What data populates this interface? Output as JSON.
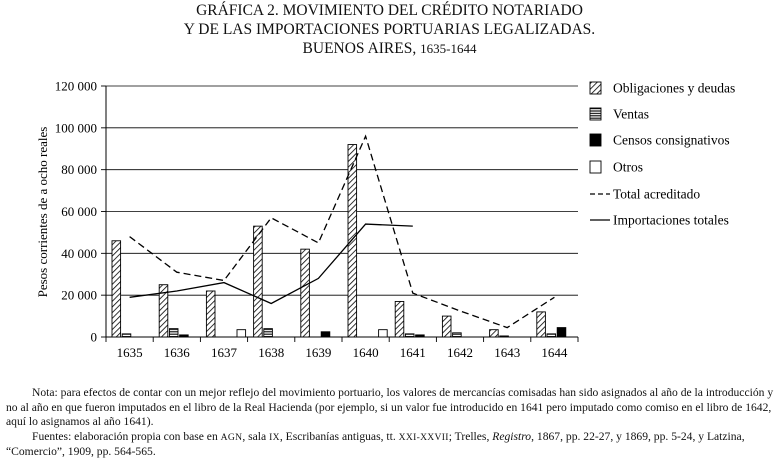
{
  "title": {
    "line1": "GRÁFICA 2. MOVIMIENTO DEL CRÉDITO NOTARIADO",
    "line2": "Y DE LAS IMPORTACIONES PORTUARIAS LEGALIZADAS.",
    "line3_main": "BUENOS AIRES,",
    "line3_years": "1635-1644"
  },
  "chart_data": {
    "type": "bar",
    "ylabel": "Pesos corrientes de a ocho reales",
    "xlabel": "",
    "ylim": [
      0,
      120000
    ],
    "yticks": [
      0,
      20000,
      40000,
      60000,
      80000,
      100000,
      120000
    ],
    "ytick_labels": [
      "0",
      "20 000",
      "40 000",
      "60 000",
      "80 000",
      "100 000",
      "120 000"
    ],
    "grid": "horizontal",
    "legend_position": "right",
    "categories": [
      "1635",
      "1636",
      "1637",
      "1638",
      "1639",
      "1640",
      "1641",
      "1642",
      "1643",
      "1644"
    ],
    "series": [
      {
        "name": "Obligaciones y deudas",
        "kind": "bar",
        "pattern": "diagonal-hatch",
        "values": [
          46000,
          25000,
          22000,
          53000,
          42000,
          92000,
          17000,
          10000,
          3500,
          12000
        ]
      },
      {
        "name": "Ventas",
        "kind": "bar",
        "pattern": "horizontal-lines",
        "values": [
          1500,
          4000,
          0,
          4000,
          0,
          0,
          1500,
          2000,
          500,
          1500
        ]
      },
      {
        "name": "Censos consignativos",
        "kind": "bar",
        "pattern": "solid-black",
        "values": [
          0,
          1000,
          0,
          0,
          2500,
          0,
          1000,
          0,
          0,
          4500
        ]
      },
      {
        "name": "Otros",
        "kind": "bar",
        "pattern": "white",
        "values": [
          0,
          0,
          3500,
          0,
          0,
          3500,
          0,
          0,
          0,
          0
        ]
      },
      {
        "name": "Total acreditado",
        "kind": "line",
        "style": "dashed",
        "values": [
          48000,
          31000,
          27000,
          57000,
          45000,
          96000,
          21000,
          12500,
          4500,
          19000
        ]
      },
      {
        "name": "Importaciones totales",
        "kind": "line",
        "style": "solid",
        "values": [
          19000,
          22000,
          26000,
          16000,
          28000,
          54000,
          53000,
          null,
          null,
          null
        ]
      }
    ]
  },
  "notes": {
    "note": "Nota: para efectos de contar con un mejor reflejo del movimiento portuario, los valores de mercancías comisadas han sido asignados al año de la introducción y no al año en que fueron imputados en el libro de la Real Hacienda (por ejemplo, si un valor fue introducido en 1641 pero imputado como comiso en el libro de 1642, aquí lo asignamos al año 1641).",
    "sources_prefix": "Fuentes: elaboración propia con base en ",
    "agn": "AGN",
    "sala_text": ", sala ",
    "sala_num": "IX",
    "escribanias": ", Escribanías antiguas, tt. ",
    "tomos": "XXI-XXVII",
    "trelles": "; Trelles, ",
    "registro": "Registro",
    "sources_rest": ", 1867, pp. 22-27, y 1869, pp. 5-24, y Latzina, “Comercio”, 1909, pp. 564-565."
  }
}
